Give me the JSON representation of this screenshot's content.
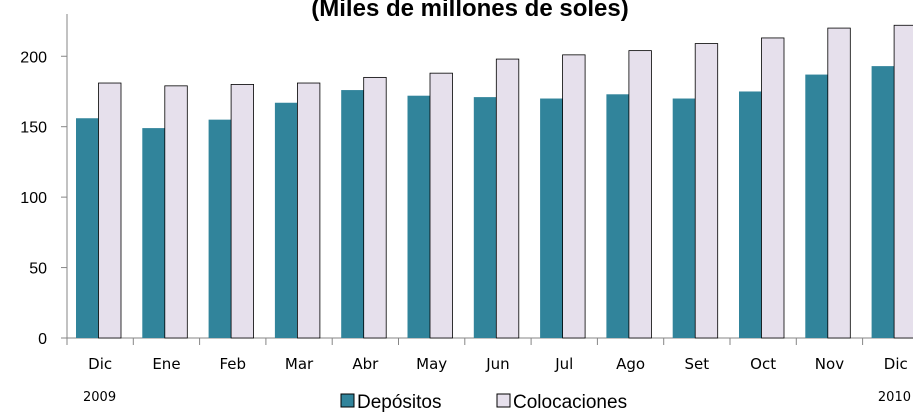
{
  "chart_data": {
    "type": "bar",
    "title": "(Miles de millones de soles)",
    "categories": [
      "Dic",
      "Ene",
      "Feb",
      "Mar",
      "Abr",
      "May",
      "Jun",
      "Jul",
      "Ago",
      "Set",
      "Oct",
      "Nov",
      "Dic"
    ],
    "year_labels": [
      "2009",
      "2010"
    ],
    "series": [
      {
        "name": "Depósitos",
        "color": "#31849b",
        "values": [
          156,
          149,
          155,
          167,
          176,
          172,
          171,
          170,
          173,
          170,
          175,
          187,
          193
        ]
      },
      {
        "name": "Colocaciones",
        "color": "#e6e0ec",
        "values": [
          181,
          179,
          180,
          181,
          185,
          188,
          198,
          201,
          204,
          209,
          213,
          220,
          222
        ]
      }
    ],
    "ylim": [
      0,
      230
    ],
    "yticks": [
      0,
      50,
      100,
      150,
      200
    ],
    "xlabel": "",
    "ylabel": "",
    "legend_position": "bottom",
    "grid": false
  }
}
